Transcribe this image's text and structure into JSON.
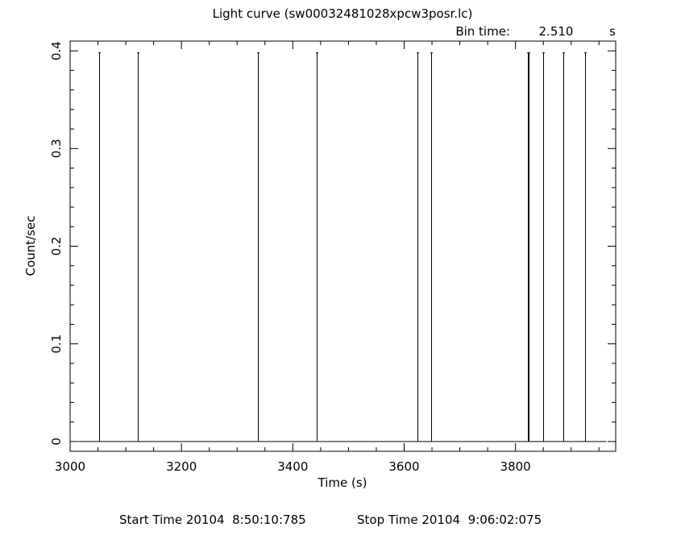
{
  "chart_data": {
    "type": "line",
    "title": "Light curve (sw00032481028xpcw3posr.lc)",
    "bin_time_label": "Bin time:",
    "bin_time_value": "2.510",
    "bin_time_unit": "s",
    "xlabel": "Time (s)",
    "ylabel": "Count/sec",
    "xlim": [
      3000,
      3980
    ],
    "ylim": [
      -0.01,
      0.41
    ],
    "x_ticks": [
      3000,
      3200,
      3400,
      3600,
      3800
    ],
    "y_ticks": [
      0,
      0.1,
      0.2,
      0.3,
      0.4
    ],
    "y_tick_labels": [
      "0",
      "0.1",
      "0.2",
      "0.3",
      "0.4"
    ],
    "baseline_range": [
      3015,
      3963
    ],
    "baseline_value": 0,
    "spike_value": 0.398,
    "spikes_x": [
      3052,
      3122,
      3338,
      3443,
      3624,
      3649,
      3822,
      3824,
      3849,
      3886,
      3925
    ]
  },
  "footer": {
    "start_time": "Start Time 20104  8:50:10:785",
    "stop_time": "Stop Time 20104  9:06:02:075"
  }
}
